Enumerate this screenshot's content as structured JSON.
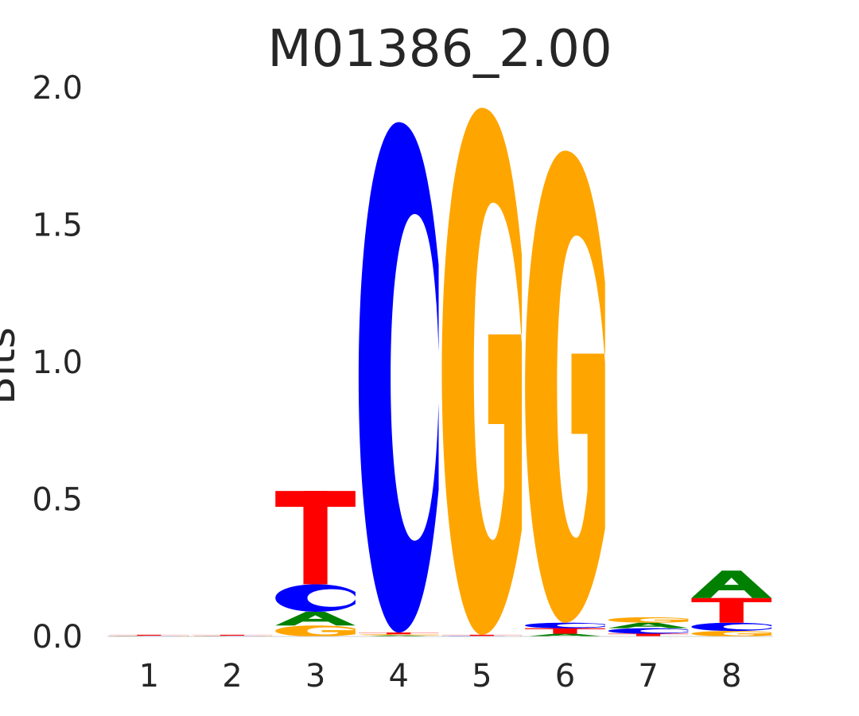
{
  "chart_data": {
    "type": "sequence-logo",
    "title": "M01386_2.00",
    "xlabel": "",
    "ylabel": "Bits",
    "ylim": [
      0,
      2.0
    ],
    "y_ticks": [
      "0.0",
      "0.5",
      "1.0",
      "1.5",
      "2.0"
    ],
    "positions": [
      "1",
      "2",
      "3",
      "4",
      "5",
      "6",
      "7",
      "8"
    ],
    "grid": false,
    "colors": {
      "A": "#008000",
      "C": "#0000ff",
      "G": "#ffa500",
      "T": "#ff0000"
    },
    "stacks": [
      [
        {
          "base": "A",
          "bits": 0.001
        },
        {
          "base": "C",
          "bits": 0.001
        },
        {
          "base": "G",
          "bits": 0.001
        },
        {
          "base": "T",
          "bits": 0.003
        }
      ],
      [
        {
          "base": "A",
          "bits": 0.001
        },
        {
          "base": "C",
          "bits": 0.001
        },
        {
          "base": "G",
          "bits": 0.001
        },
        {
          "base": "T",
          "bits": 0.003
        }
      ],
      [
        {
          "base": "G",
          "bits": 0.04
        },
        {
          "base": "A",
          "bits": 0.05
        },
        {
          "base": "C",
          "bits": 0.1
        },
        {
          "base": "T",
          "bits": 0.34
        }
      ],
      [
        {
          "base": "A",
          "bits": 0.004
        },
        {
          "base": "G",
          "bits": 0.004
        },
        {
          "base": "T",
          "bits": 0.006
        },
        {
          "base": "C",
          "bits": 1.86
        }
      ],
      [
        {
          "base": "A",
          "bits": 0.001
        },
        {
          "base": "C",
          "bits": 0.001
        },
        {
          "base": "T",
          "bits": 0.004
        },
        {
          "base": "G",
          "bits": 1.92
        }
      ],
      [
        {
          "base": "A",
          "bits": 0.01
        },
        {
          "base": "T",
          "bits": 0.02
        },
        {
          "base": "C",
          "bits": 0.02
        },
        {
          "base": "G",
          "bits": 1.72
        }
      ],
      [
        {
          "base": "T",
          "bits": 0.01
        },
        {
          "base": "C",
          "bits": 0.02
        },
        {
          "base": "A",
          "bits": 0.02
        },
        {
          "base": "G",
          "bits": 0.02
        }
      ],
      [
        {
          "base": "G",
          "bits": 0.02
        },
        {
          "base": "C",
          "bits": 0.03
        },
        {
          "base": "T",
          "bits": 0.09
        },
        {
          "base": "A",
          "bits": 0.1
        }
      ]
    ]
  }
}
